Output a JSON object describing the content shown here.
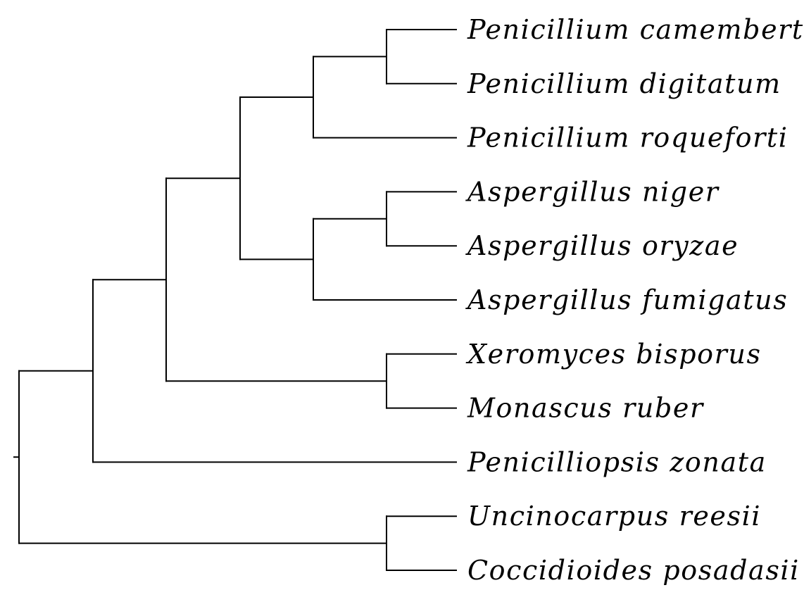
{
  "tree": {
    "taxa": [
      {
        "id": "p_camemberti",
        "label": "Penicillium camemberti"
      },
      {
        "id": "p_digitatum",
        "label": "Penicillium digitatum"
      },
      {
        "id": "p_roqueforti",
        "label": "Penicillium roqueforti"
      },
      {
        "id": "a_niger",
        "label": "Aspergillus niger"
      },
      {
        "id": "a_oryzae",
        "label": "Aspergillus oryzae"
      },
      {
        "id": "a_fumigatus",
        "label": "Aspergillus fumigatus"
      },
      {
        "id": "x_bisporus",
        "label": "Xeromyces bisporus"
      },
      {
        "id": "m_ruber",
        "label": "Monascus ruber"
      },
      {
        "id": "p_zonata",
        "label": "Penicilliopsis zonata"
      },
      {
        "id": "u_reesii",
        "label": "Uncinocarpus reesii"
      },
      {
        "id": "c_posadasii",
        "label": "Coccidioides posadasii"
      }
    ],
    "topology": [
      "root",
      [
        [
          "n1",
          [
            [
              "n2",
              [
                [
                  "n3",
                  [
                    [
                      "n4",
                      [
                        [
                          "n5",
                          [
                            "p_camemberti",
                            "p_digitatum"
                          ]
                        ],
                        "p_roqueforti"
                      ]
                    ],
                    [
                      "n6",
                      [
                        [
                          "n7",
                          [
                            "a_niger",
                            "a_oryzae"
                          ]
                        ],
                        "a_fumigatus"
                      ]
                    ]
                  ]
                ],
                [
                  "n8",
                  [
                    "x_bisporus",
                    "m_ruber"
                  ]
                ]
              ]
            ],
            "p_zonata"
          ]
        ],
        [
          "n9",
          [
            "u_reesii",
            "c_posadasii"
          ]
        ]
      ]
    ]
  }
}
